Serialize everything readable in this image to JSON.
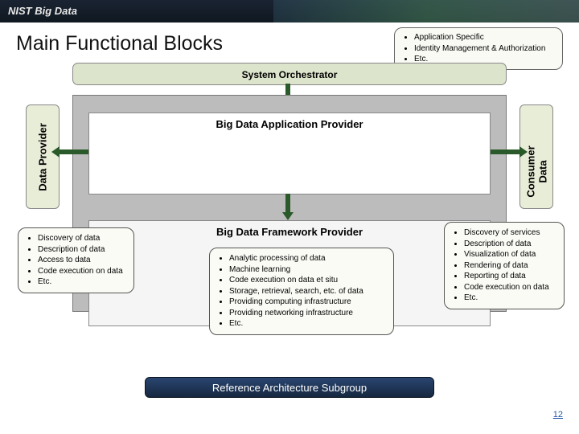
{
  "header": {
    "logo_text": "NIST Big Data"
  },
  "title": "Main Functional Blocks",
  "callout_top": {
    "items": [
      "Application Specific",
      "Identity Management & Authorization",
      "Etc."
    ]
  },
  "arch": {
    "orchestrator": "System Orchestrator",
    "left_box": "Data Provider",
    "right_box_l1": "Data",
    "right_box_l2": "Consumer",
    "app_provider": "Big Data Application Provider",
    "frm_provider": "Big Data Framework Provider"
  },
  "callout_left": {
    "items": [
      "Discovery of data",
      "Description of data",
      "Access to data",
      "Code execution on data",
      "Etc."
    ]
  },
  "callout_center": {
    "items": [
      "Analytic processing of data",
      "Machine learning",
      "Code execution on data et situ",
      "Storage, retrieval, search, etc. of data",
      "Providing computing infrastructure",
      "Providing networking infrastructure",
      "Etc."
    ]
  },
  "callout_right": {
    "items": [
      "Discovery of services",
      "Description of data",
      "Visualization of data",
      "Rendering of data",
      "Reporting of data",
      "Code execution on data",
      "Etc."
    ]
  },
  "footer": "Reference Architecture Subgroup",
  "page_number": "12",
  "colors": {
    "box_green": "#dde4cc",
    "box_light": "#e8edd8",
    "gray_panel": "#bcbcbc",
    "arrow": "#2a5a2a",
    "footer_grad_top": "#2a4570",
    "footer_grad_bot": "#162840"
  }
}
